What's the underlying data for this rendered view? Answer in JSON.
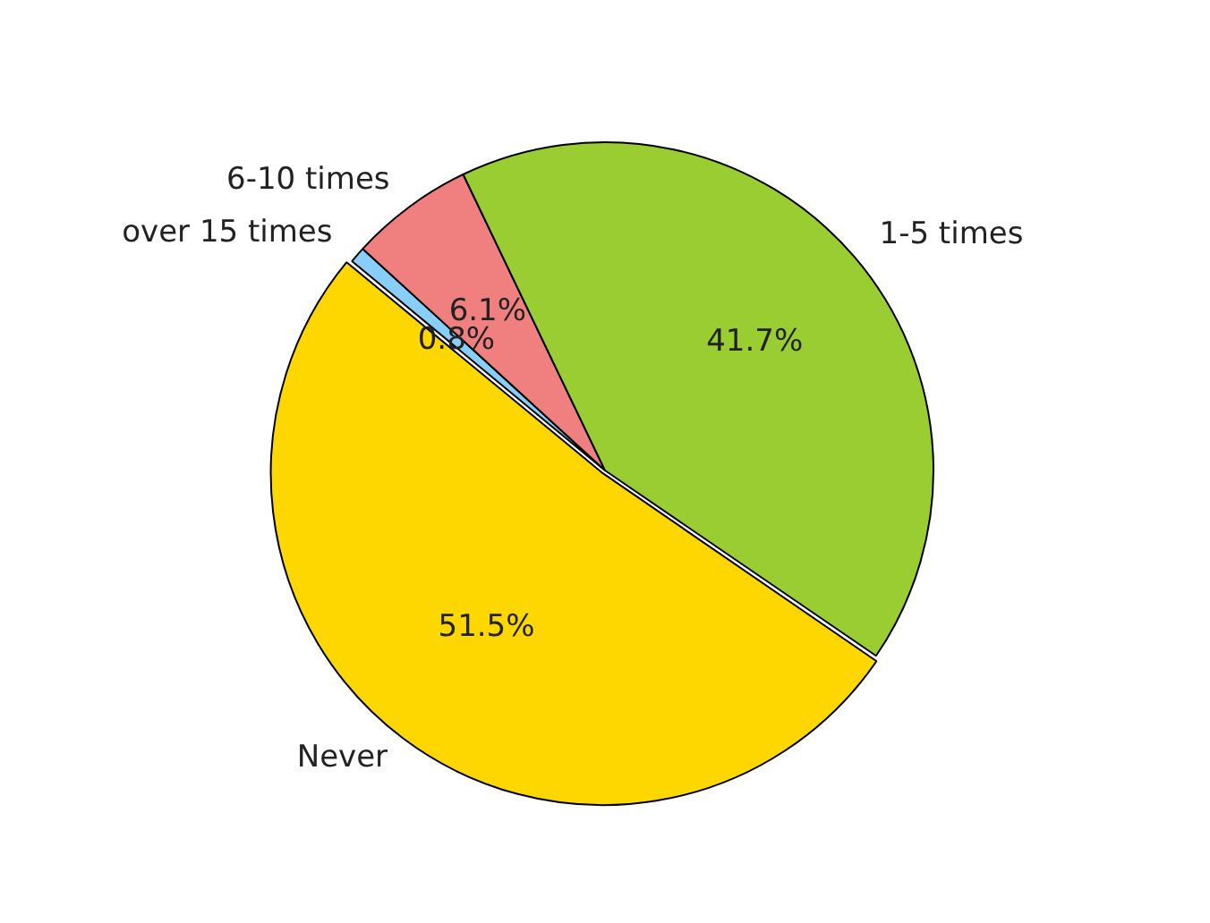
{
  "chart_data": {
    "type": "pie",
    "categories": [
      "over 15 times",
      "6-10 times",
      "1-5 times",
      "Never"
    ],
    "values": [
      0.8,
      6.1,
      41.7,
      51.5
    ],
    "colors": [
      "#87cefa",
      "#f08080",
      "#9acd32",
      "#ffd700"
    ],
    "value_labels": [
      "0.8%",
      "6.1%",
      "41.7%",
      "51.5%"
    ],
    "legend": false
  }
}
